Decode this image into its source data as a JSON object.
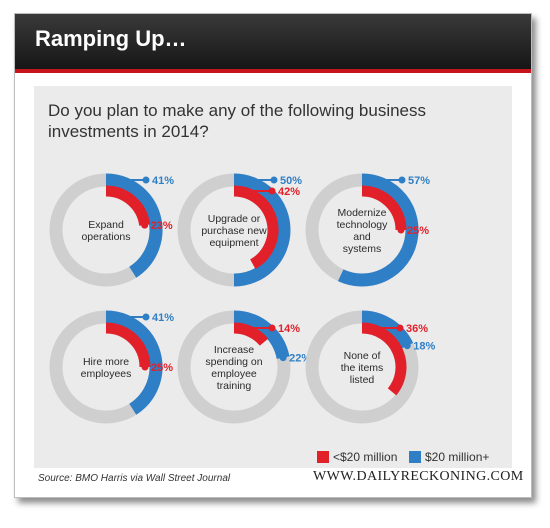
{
  "header": {
    "title": "Ramping Up…",
    "accent_color": "#c4161c"
  },
  "chart_data": {
    "type": "donut",
    "title": "Do you plan to make any of the following business investments in 2014?",
    "series": [
      {
        "name": "<$20 million",
        "color": "#e1202a"
      },
      {
        "name": "$20 million+",
        "color": "#2f7fc6"
      }
    ],
    "categories": [
      {
        "label": [
          "Expand",
          "operations"
        ],
        "under20": 23,
        "over20": 41,
        "under20_label": "23%",
        "over20_label": "41%"
      },
      {
        "label": [
          "Upgrade or",
          "purchase new",
          "equipment"
        ],
        "under20": 42,
        "over20": 50,
        "under20_label": "42%",
        "over20_label": "50%"
      },
      {
        "label": [
          "Modernize",
          "technology",
          "and",
          "systems"
        ],
        "under20": 25,
        "over20": 57,
        "under20_label": "25%",
        "over20_label": "57%"
      },
      {
        "label": [
          "Hire more",
          "employees"
        ],
        "under20": 25,
        "over20": 41,
        "under20_label": "25%",
        "over20_label": "41%"
      },
      {
        "label": [
          "Increase",
          "spending on",
          "employee",
          "training"
        ],
        "under20": 14,
        "over20": 22,
        "under20_label": "14%",
        "over20_label": "22%"
      },
      {
        "label": [
          "None of",
          "the items",
          "listed"
        ],
        "under20": 36,
        "over20": 18,
        "under20_label": "36%",
        "over20_label": "18%"
      }
    ],
    "track_color": "#cfcfcf"
  },
  "legend": {
    "under20": "<$20 million",
    "over20": "$20 million+"
  },
  "footer": {
    "source": "Source: BMO Harris via Wall Street Journal",
    "brand": "WWW.DAILYRECKONING.COM"
  }
}
